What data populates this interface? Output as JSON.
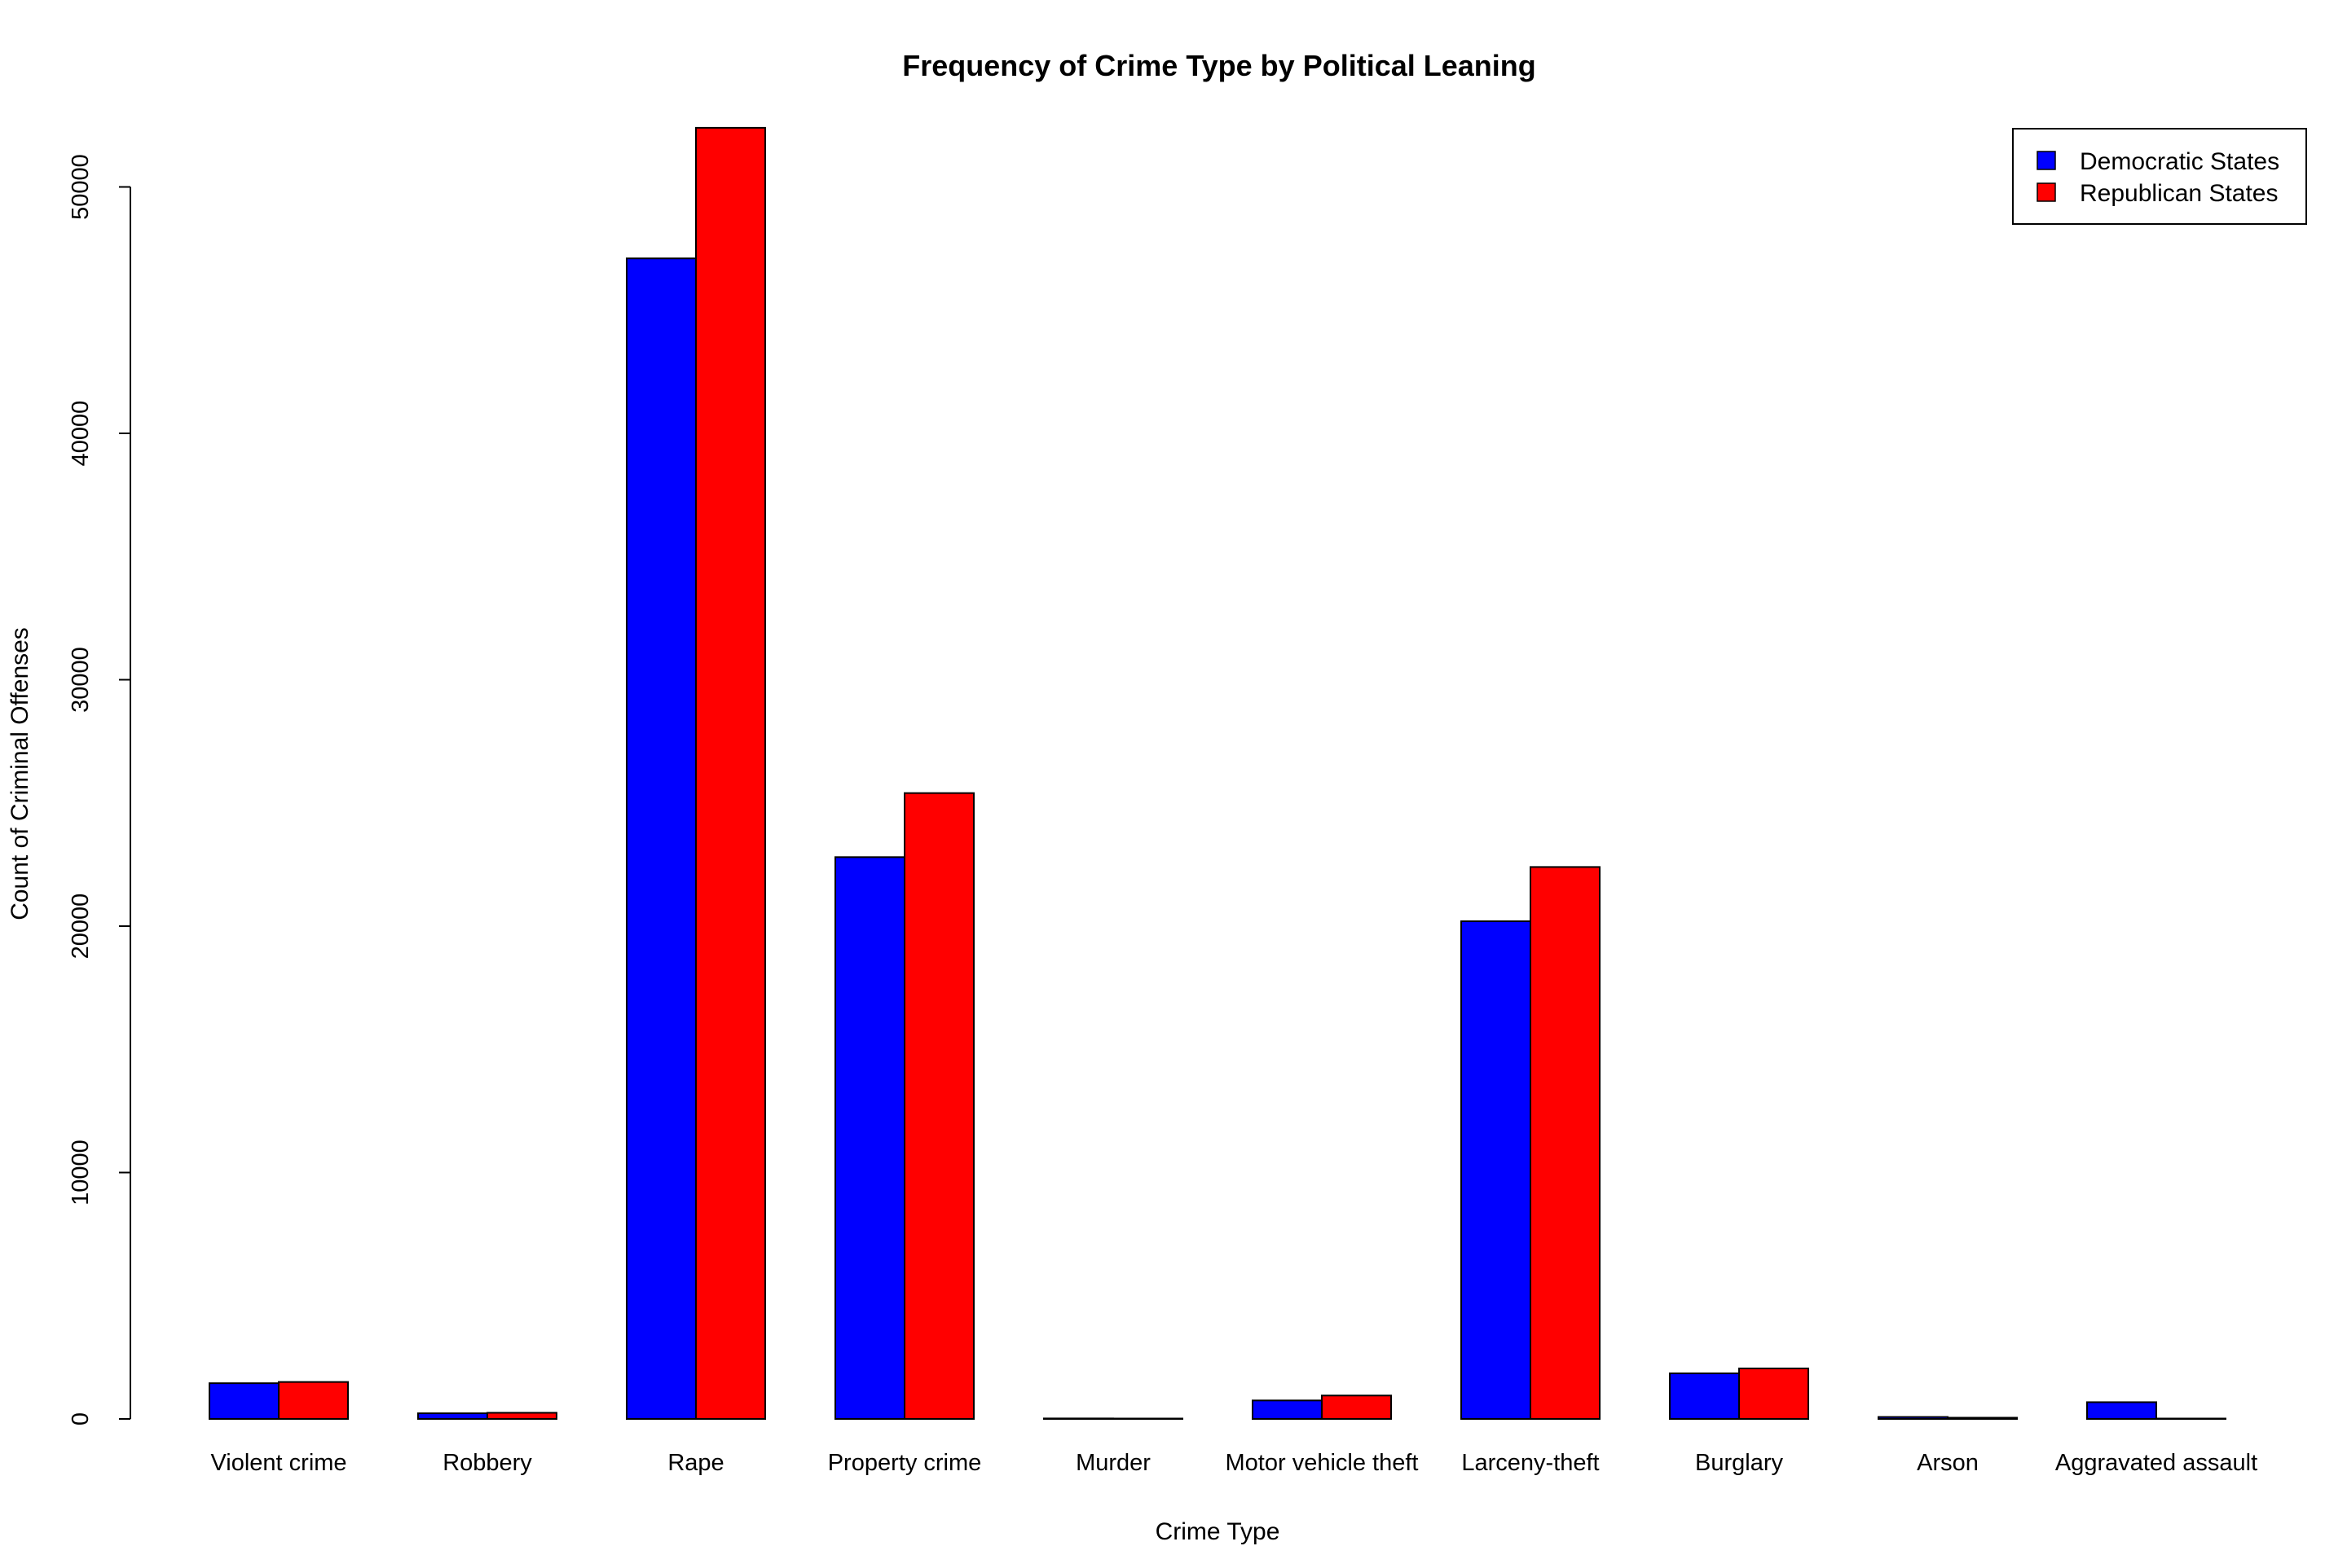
{
  "chart_data": {
    "type": "bar",
    "title": "Frequency of Crime Type by Political Leaning",
    "xlabel": "Crime Type",
    "ylabel": "Count of Criminal Offenses",
    "categories": [
      "Violent crime",
      "Robbery",
      "Rape",
      "Property crime",
      "Murder",
      "Motor vehicle theft",
      "Larceny-theft",
      "Burglary",
      "Arson",
      "Aggravated assault"
    ],
    "series": [
      {
        "name": "Democratic States",
        "color": "#0000FF",
        "values": [
          1450,
          230,
          47100,
          22800,
          20,
          750,
          20200,
          1850,
          80,
          680
        ]
      },
      {
        "name": "Republican States",
        "color": "#FF0000",
        "values": [
          1500,
          250,
          52400,
          25400,
          15,
          950,
          22400,
          2050,
          50,
          10
        ]
      }
    ],
    "ylim": [
      0,
      53000
    ],
    "yticks": [
      0,
      10000,
      20000,
      30000,
      40000,
      50000
    ],
    "grid": false,
    "legend_position": "top-right"
  }
}
